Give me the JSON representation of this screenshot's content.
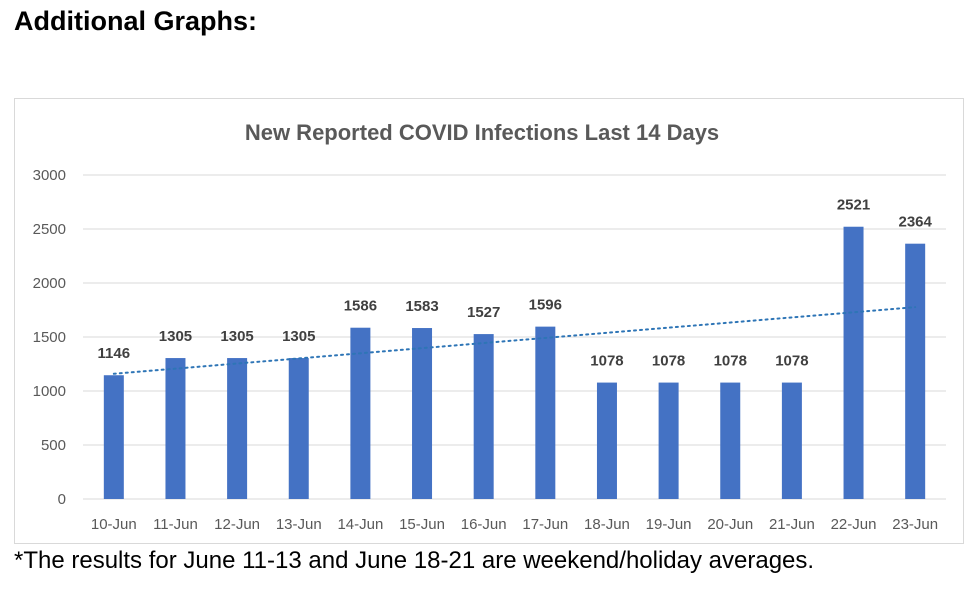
{
  "heading": "Additional Graphs:",
  "footnote": "*The results for June 11-13 and June 18-21 are weekend/holiday averages.",
  "colors": {
    "bar": "#4472c4",
    "trend": "#2e75b6",
    "grid": "#d9d9d9",
    "axis_text": "#595959",
    "title_text": "#595959",
    "label_text": "#404040"
  },
  "chart_data": {
    "type": "bar",
    "title": "New Reported COVID Infections Last 14 Days",
    "xlabel": "",
    "ylabel": "",
    "ylim": [
      0,
      3000
    ],
    "yticks": [
      0,
      500,
      1000,
      1500,
      2000,
      2500,
      3000
    ],
    "categories": [
      "10-Jun",
      "11-Jun",
      "12-Jun",
      "13-Jun",
      "14-Jun",
      "15-Jun",
      "16-Jun",
      "17-Jun",
      "18-Jun",
      "19-Jun",
      "20-Jun",
      "21-Jun",
      "22-Jun",
      "23-Jun"
    ],
    "values": [
      1146,
      1305,
      1305,
      1305,
      1586,
      1583,
      1527,
      1596,
      1078,
      1078,
      1078,
      1078,
      2521,
      2364
    ],
    "trendline": {
      "type": "linear",
      "style": "dotted"
    },
    "grid": true,
    "legend": "none"
  }
}
